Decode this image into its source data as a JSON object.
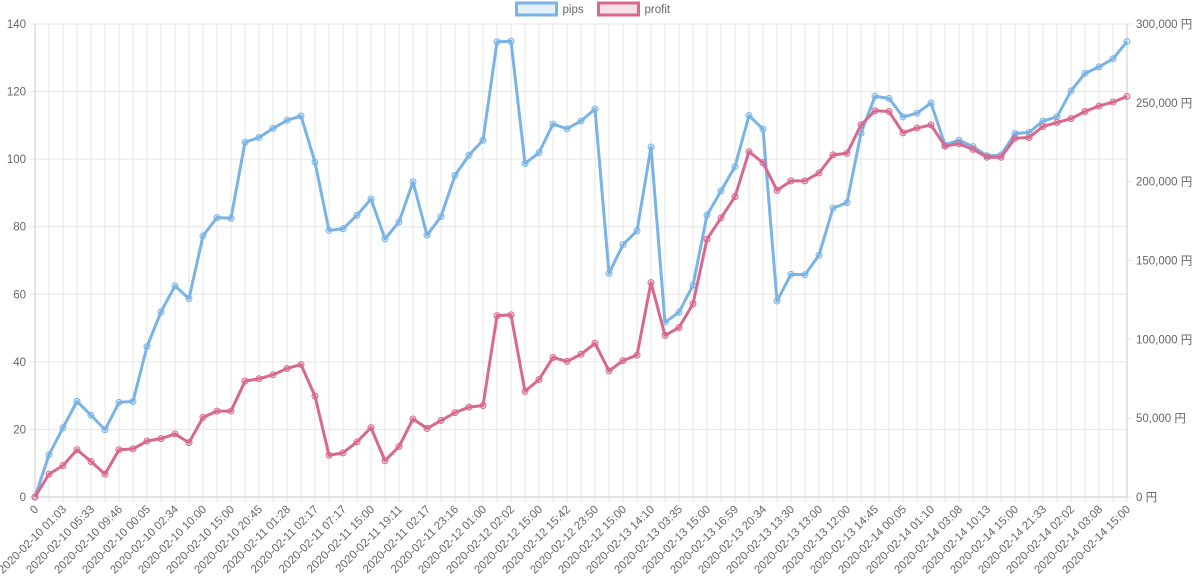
{
  "chart_data": {
    "type": "line",
    "title": "",
    "legend": {
      "position": "top"
    },
    "grid": true,
    "x_tick_labels": [
      "0",
      "2020-02-10 01:03",
      "2020-02-10 05:33",
      "2020-02-10 09:46",
      "2020-02-10 00:05",
      "2020-02-10 02:34",
      "2020-02-10 10:00",
      "2020-02-10 15:00",
      "2020-02-10 20:45",
      "2020-02-11 01:28",
      "2020-02-11 02:17",
      "2020-02-11 07:17",
      "2020-02-11 15:00",
      "2020-02-11 19:11",
      "2020-02-11 02:17",
      "2020-02-11 23:16",
      "2020-02-12 01:00",
      "2020-02-12 02:02",
      "2020-02-12 15:00",
      "2020-02-12 15:42",
      "2020-02-12 23:50",
      "2020-02-12 15:00",
      "2020-02-13 14:10",
      "2020-02-13 03:35",
      "2020-02-13 15:00",
      "2020-02-13 16:59",
      "2020-02-13 20:34",
      "2020-02-13 13:30",
      "2020-02-13 13:00",
      "2020-02-13 12:00",
      "2020-02-13 14:45",
      "2020-02-14 00:05",
      "2020-02-14 01:10",
      "2020-02-14 03:08",
      "2020-02-14 10:13",
      "2020-02-14 15:00",
      "2020-02-14 21:33",
      "2020-02-14 02:02",
      "2020-02-14 03:08",
      "2020-02-14 15:00"
    ],
    "left_axis": {
      "ylim": [
        0,
        140
      ],
      "ticks": [
        "0",
        "20",
        "40",
        "60",
        "80",
        "100",
        "120",
        "140"
      ]
    },
    "right_axis": {
      "ylim": [
        0,
        300000
      ],
      "ticks": [
        "0 円",
        "50,000 円",
        "100,000 円",
        "150,000 円",
        "200,000 円",
        "250,000 円",
        "300,000 円"
      ]
    },
    "series": [
      {
        "name": "pips",
        "axis": "left",
        "color": "#7ab3e6",
        "fill": "rgba(122,179,230,0.2)",
        "values": [
          0,
          12.5,
          20.5,
          28.3,
          24.2,
          19.9,
          28.0,
          28.3,
          44.5,
          54.8,
          62.5,
          58.7,
          77.3,
          82.7,
          82.5,
          105.0,
          106.4,
          109.1,
          111.5,
          112.8,
          99.1,
          78.9,
          79.4,
          83.4,
          88.2,
          76.4,
          81.4,
          93.3,
          77.5,
          83.0,
          95.2,
          101.2,
          105.6,
          134.7,
          134.9,
          98.7,
          101.9,
          110.4,
          109.0,
          111.3,
          114.8,
          66.2,
          74.7,
          78.8,
          103.6,
          51.7,
          54.7,
          62.7,
          83.4,
          90.6,
          97.8,
          112.9,
          108.9,
          58.0,
          65.9,
          65.8,
          71.6,
          85.5,
          87.1,
          107.7,
          118.6,
          118.0,
          112.5,
          113.6,
          116.6,
          104.2,
          105.6,
          103.7,
          101.0,
          101.2,
          107.6,
          107.9,
          111.3,
          112.5,
          120.2,
          125.4,
          127.3,
          129.7,
          134.8
        ]
      },
      {
        "name": "profit",
        "axis": "right",
        "color": "#d9688f",
        "fill": "rgba(217,104,143,0.2)",
        "values": [
          0,
          14500,
          20000,
          30000,
          22500,
          14500,
          30000,
          30500,
          35500,
          37000,
          40000,
          34500,
          50500,
          54500,
          54500,
          73500,
          75000,
          77500,
          81500,
          84000,
          64000,
          26500,
          28000,
          35000,
          44000,
          23000,
          32000,
          49500,
          43500,
          48500,
          53500,
          57000,
          58000,
          115000,
          115500,
          67000,
          74500,
          88500,
          86000,
          90500,
          97500,
          80000,
          86500,
          90000,
          136000,
          102500,
          107500,
          122500,
          163500,
          177000,
          190500,
          219000,
          212000,
          194500,
          200500,
          200500,
          205500,
          217000,
          218000,
          236000,
          245000,
          244500,
          231000,
          234000,
          236000,
          222500,
          224000,
          220500,
          215500,
          215500,
          227500,
          228000,
          235000,
          237500,
          240000,
          244500,
          248000,
          250500,
          254000
        ]
      }
    ]
  }
}
